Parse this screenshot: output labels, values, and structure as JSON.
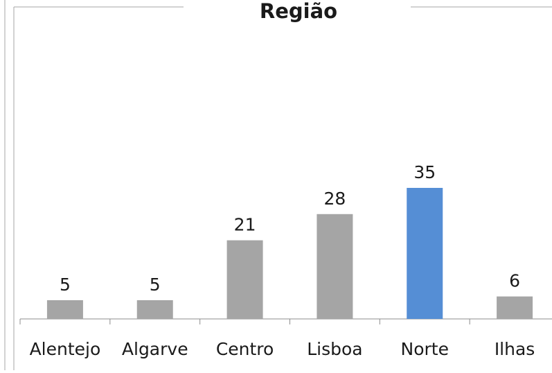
{
  "chart_data": {
    "type": "bar",
    "title": "Região",
    "categories": [
      "Alentejo",
      "Algarve",
      "Centro",
      "Lisboa",
      "Norte",
      "Ilhas"
    ],
    "values": [
      5,
      5,
      21,
      28,
      35,
      6
    ],
    "xlabel": "",
    "ylabel": "",
    "ylim": [
      0,
      50
    ],
    "grid": false,
    "legend": "none",
    "colors": {
      "default_bar": "#a5a5a5",
      "highlight_bar": "#558ed5"
    },
    "highlight_index": 4
  }
}
